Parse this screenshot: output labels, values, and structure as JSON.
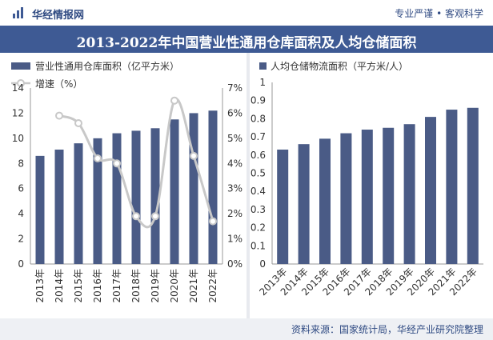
{
  "header": {
    "brand": "华经情报网",
    "slogan": "专业严谨 • 客观科学",
    "title": "2013-2022年中国营业性通用仓库面积及人均仓储面积"
  },
  "footer": {
    "source": "资料来源：国家统计局，华经产业研究院整理"
  },
  "colors": {
    "bar": "#4a5b86",
    "line": "#c8c8c8",
    "title_bg": "#3e5a94"
  },
  "chart_data": [
    {
      "type": "bar",
      "categories": [
        "2013年",
        "2014年",
        "2015年",
        "2016年",
        "2017年",
        "2018年",
        "2019年",
        "2020年",
        "2021年",
        "2022年"
      ],
      "series": [
        {
          "name": "营业性通用仓库面积（亿平方米）",
          "type": "bar",
          "axis": "left",
          "values": [
            8.6,
            9.1,
            9.6,
            10.0,
            10.4,
            10.6,
            10.8,
            11.5,
            12.0,
            12.2
          ]
        },
        {
          "name": "增速（%）",
          "type": "line",
          "axis": "right",
          "values": [
            null,
            5.9,
            5.6,
            4.2,
            4.0,
            1.9,
            1.9,
            6.5,
            4.3,
            1.7
          ]
        }
      ],
      "ylim_left": [
        0,
        14
      ],
      "yticks_left": [
        "0",
        "2",
        "4",
        "6",
        "8",
        "10",
        "12",
        "14"
      ],
      "ylim_right": [
        0,
        7
      ],
      "yticks_right": [
        "0%",
        "1%",
        "2%",
        "3%",
        "4%",
        "5%",
        "6%",
        "7%"
      ],
      "legend": "top-left"
    },
    {
      "type": "bar",
      "categories": [
        "2013年",
        "2014年",
        "2015年",
        "2016年",
        "2017年",
        "2018年",
        "2019年",
        "2020年",
        "2021年",
        "2022年"
      ],
      "series": [
        {
          "name": "人均仓储物流面积（平方米/人）",
          "values": [
            0.63,
            0.66,
            0.69,
            0.72,
            0.74,
            0.75,
            0.77,
            0.81,
            0.85,
            0.86
          ]
        }
      ],
      "ylim": [
        0,
        1
      ],
      "yticks": [
        "0",
        "0.1",
        "0.2",
        "0.3",
        "0.4",
        "0.5",
        "0.6",
        "0.7",
        "0.8",
        "0.9",
        "1"
      ],
      "legend": "top-left"
    }
  ]
}
